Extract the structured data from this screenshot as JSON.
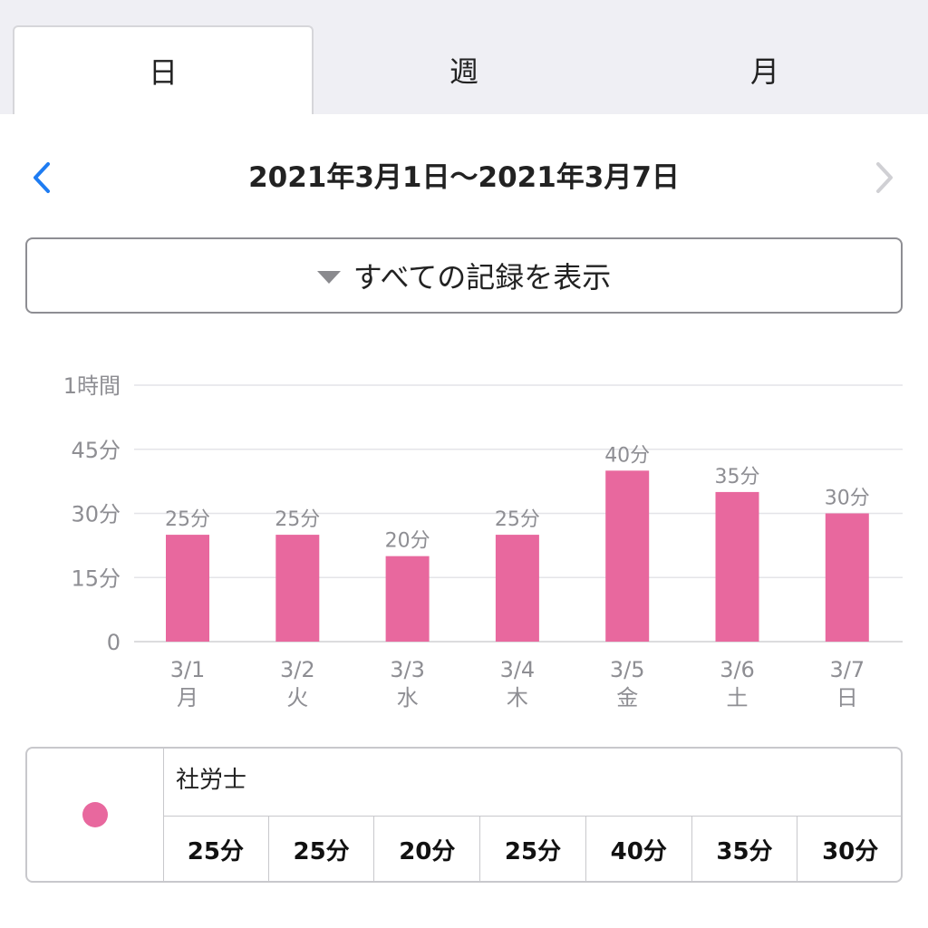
{
  "tabs": [
    {
      "label": "日",
      "active": true
    },
    {
      "label": "週",
      "active": false
    },
    {
      "label": "月",
      "active": false
    }
  ],
  "date_nav": {
    "range": "2021年3月1日〜2021年3月7日",
    "prev_icon": "chevron-left-icon",
    "next_icon": "chevron-right-icon",
    "prev_color": "#1e7cf2",
    "next_color": "#d0d0d4"
  },
  "filter": {
    "label": "すべての記録を表示",
    "icon": "triangle-down-icon"
  },
  "chart_data": {
    "type": "bar",
    "categories": [
      "3/1",
      "3/2",
      "3/3",
      "3/4",
      "3/5",
      "3/6",
      "3/7"
    ],
    "weekdays": [
      "月",
      "火",
      "水",
      "木",
      "金",
      "土",
      "日"
    ],
    "values": [
      25,
      25,
      20,
      25,
      40,
      35,
      30
    ],
    "data_labels": [
      "25分",
      "25分",
      "20分",
      "25分",
      "40分",
      "35分",
      "30分"
    ],
    "y_ticks": [
      0,
      15,
      30,
      45,
      60
    ],
    "y_tick_labels": [
      "0",
      "15分",
      "30分",
      "45分",
      "1時間"
    ],
    "ylim": [
      0,
      60
    ],
    "grid": true,
    "bar_color": "#e8689e"
  },
  "legend": {
    "name": "社労士",
    "color": "#e8689e",
    "values": [
      "25分",
      "25分",
      "20分",
      "25分",
      "40分",
      "35分",
      "30分"
    ]
  }
}
